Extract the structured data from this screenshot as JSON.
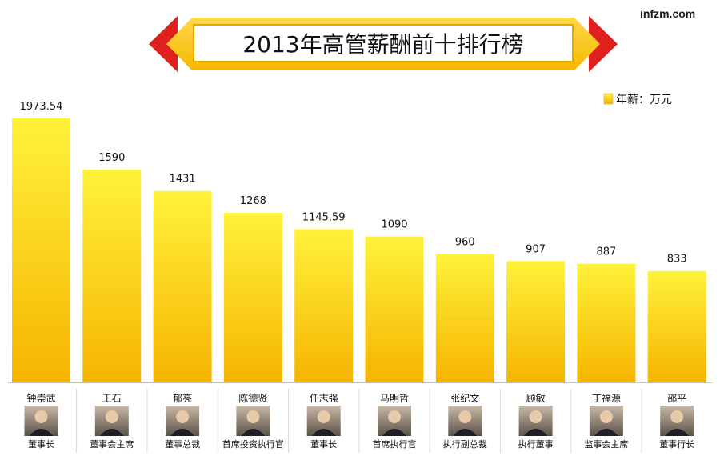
{
  "watermark": "infzm.com",
  "colors": {
    "arrow_red": "#e0201c",
    "banner_gold": "#ffcc00",
    "bar_light": "#fff23a",
    "bar_dark": "#f6b400",
    "text": "#111111"
  },
  "chart_data": {
    "type": "bar",
    "title": "2013年高管薪酬前十排行榜",
    "legend": {
      "label": "年薪：万元",
      "placement": "top-right"
    },
    "categories": [
      "钟崇武",
      "王石",
      "郁亮",
      "陈德贤",
      "任志强",
      "马明哲",
      "张纪文",
      "顾敏",
      "丁福源",
      "邵平"
    ],
    "roles": [
      "董事长",
      "董事会主席",
      "董事总裁",
      "首席投资执行官",
      "董事长",
      "首席执行官",
      "执行副总裁",
      "执行董事",
      "监事会主席",
      "董事行长"
    ],
    "values": [
      1973.54,
      1590,
      1431,
      1268,
      1145.59,
      1090,
      960,
      907,
      887,
      833
    ],
    "value_labels": [
      "1973.54",
      "1590",
      "1431",
      "1268",
      "1145.59",
      "1090",
      "960",
      "907",
      "887",
      "833"
    ],
    "ylim": [
      0,
      2000
    ],
    "grid": false
  }
}
